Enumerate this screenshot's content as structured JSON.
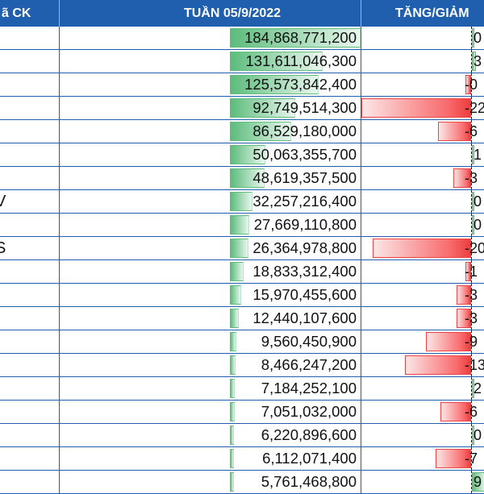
{
  "header": {
    "col_ticker": "ã CK",
    "col_value": "TUẦN 05/9/2022",
    "col_change": "TĂNG/GIẢM"
  },
  "colors": {
    "header_bg": "#1f5fad",
    "positive_bar": "#63be7b",
    "negative_bar": "#f8696b"
  },
  "rows": [
    {
      "ticker": "",
      "value": "184,868,771,200",
      "value_num": 184868771200,
      "change": "0",
      "change_bar": 0.01
    },
    {
      "ticker": "",
      "value": "131,611,046,300",
      "value_num": 131611046300,
      "change": "3",
      "change_bar": 0.1
    },
    {
      "ticker": "",
      "value": "125,573,842,400",
      "value_num": 125573842400,
      "change": "-0",
      "change_bar": -0.05
    },
    {
      "ticker": "",
      "value": "92,749,514,300",
      "value_num": 92749514300,
      "change": "-22",
      "change_bar": -1.0
    },
    {
      "ticker": "",
      "value": "86,529,180,000",
      "value_num": 86529180000,
      "change": "-6",
      "change_bar": -0.3
    },
    {
      "ticker": "",
      "value": "50,063,355,700",
      "value_num": 50063355700,
      "change": "1",
      "change_bar": 0.04
    },
    {
      "ticker": "",
      "value": "48,619,357,500",
      "value_num": 48619357500,
      "change": "-3",
      "change_bar": -0.16
    },
    {
      "ticker": "V",
      "value": "32,257,216,400",
      "value_num": 32257216400,
      "change": "0",
      "change_bar": 0.01
    },
    {
      "ticker": "",
      "value": "27,669,110,800",
      "value_num": 27669110800,
      "change": "0",
      "change_bar": 0.01
    },
    {
      "ticker": "S",
      "value": "26,364,978,800",
      "value_num": 26364978800,
      "change": "-20",
      "change_bar": -0.9
    },
    {
      "ticker": "",
      "value": "18,833,312,400",
      "value_num": 18833312400,
      "change": "-1",
      "change_bar": -0.05
    },
    {
      "ticker": "",
      "value": "15,970,455,600",
      "value_num": 15970455600,
      "change": "-3",
      "change_bar": -0.13
    },
    {
      "ticker": "",
      "value": "12,440,107,600",
      "value_num": 12440107600,
      "change": "-3",
      "change_bar": -0.13
    },
    {
      "ticker": "",
      "value": "9,560,450,900",
      "value_num": 9560450900,
      "change": "-9",
      "change_bar": -0.41
    },
    {
      "ticker": "",
      "value": "8,466,247,200",
      "value_num": 8466247200,
      "change": "-13",
      "change_bar": -0.6
    },
    {
      "ticker": "",
      "value": "7,184,252,100",
      "value_num": 7184252100,
      "change": "2",
      "change_bar": 0.04
    },
    {
      "ticker": "",
      "value": "7,051,032,000",
      "value_num": 7051032000,
      "change": "-6",
      "change_bar": -0.28
    },
    {
      "ticker": "",
      "value": "6,220,896,600",
      "value_num": 6220896600,
      "change": "0",
      "change_bar": 0.01
    },
    {
      "ticker": "",
      "value": "6,112,071,400",
      "value_num": 6112071400,
      "change": "-7",
      "change_bar": -0.32
    },
    {
      "ticker": "",
      "value": "5,761,468,800",
      "value_num": 5761468800,
      "change": "9",
      "change_bar": 0.3
    }
  ]
}
